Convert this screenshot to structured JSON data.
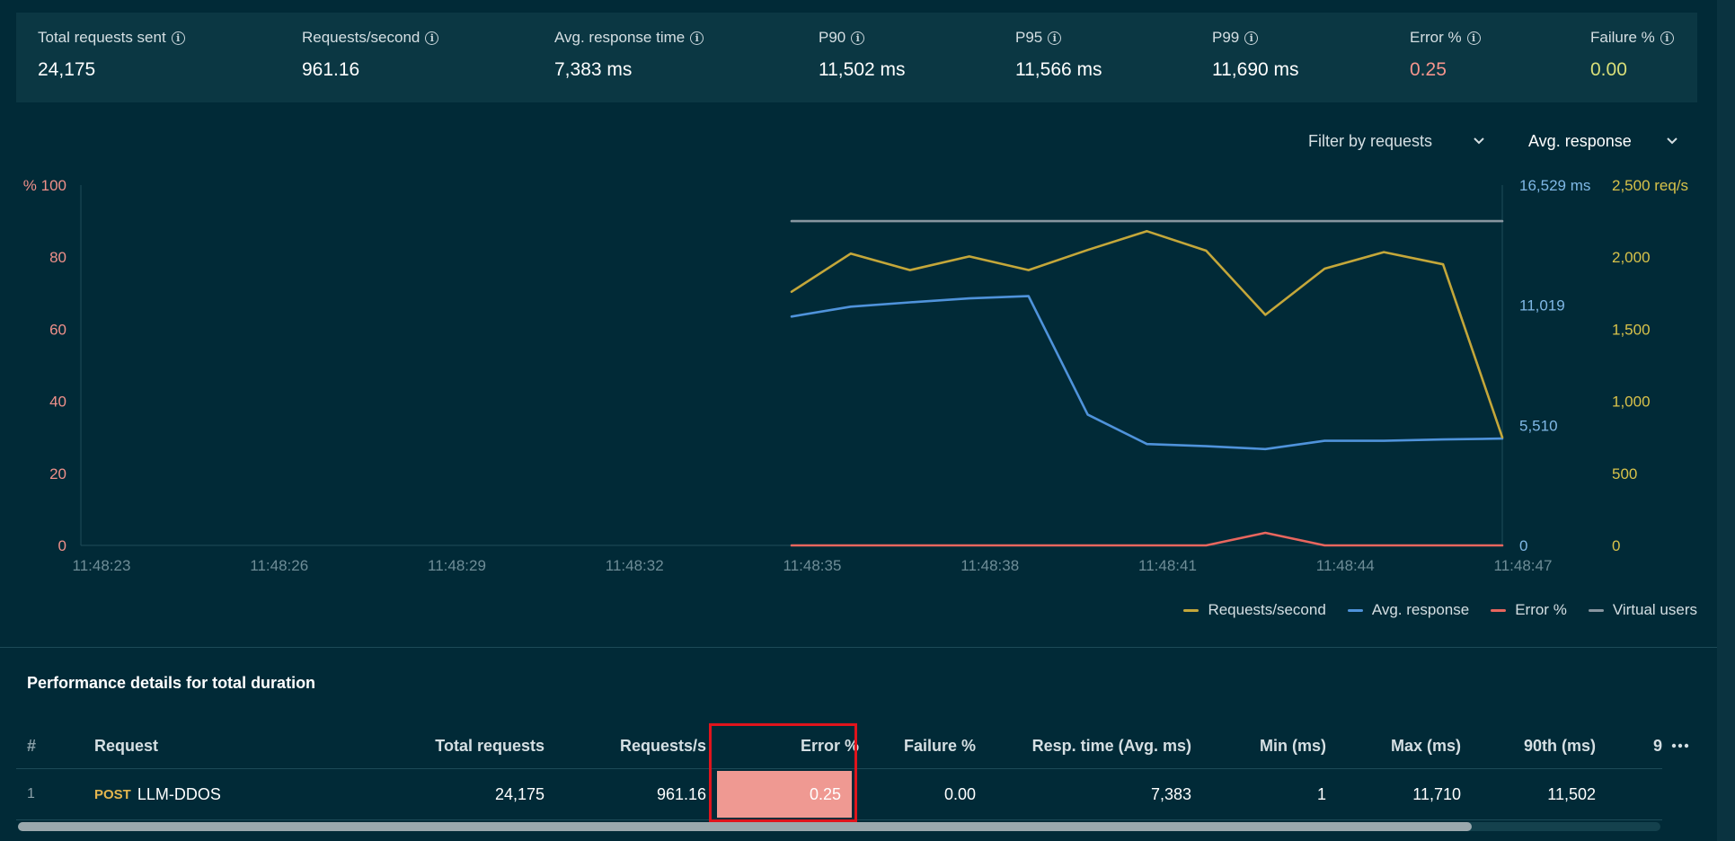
{
  "stats": [
    {
      "label": "Total requests sent",
      "value": "24,175"
    },
    {
      "label": "Requests/second",
      "value": "961.16"
    },
    {
      "label": "Avg. response time",
      "value": "7,383 ms"
    },
    {
      "label": "P90",
      "value": "11,502 ms"
    },
    {
      "label": "P95",
      "value": "11,566 ms"
    },
    {
      "label": "P99",
      "value": "11,690 ms"
    },
    {
      "label": "Error %",
      "value": "0.25"
    },
    {
      "label": "Failure %",
      "value": "0.00"
    }
  ],
  "filters": {
    "requests": "Filter by requests",
    "metric": "Avg. response"
  },
  "chart_data": {
    "type": "line",
    "x": [
      "11:48:35",
      "11:48:36",
      "11:48:37",
      "11:48:38",
      "11:48:39",
      "11:48:40",
      "11:48:41",
      "11:48:42",
      "11:48:43",
      "11:48:44",
      "11:48:45",
      "11:48:46",
      "11:48:47"
    ],
    "xticks": [
      "11:48:23",
      "11:48:26",
      "11:48:29",
      "11:48:32",
      "11:48:35",
      "11:48:38",
      "11:48:41",
      "11:48:44",
      "11:48:47"
    ],
    "yaxes": {
      "left": {
        "ticks": [
          "100",
          "80",
          "60",
          "40",
          "20",
          "0"
        ],
        "unit": "%",
        "range": [
          0,
          100
        ]
      },
      "mid": {
        "ticks": [
          "16,529 ms",
          "11,019",
          "5,510",
          "0"
        ],
        "range": [
          0,
          16529
        ]
      },
      "right": {
        "ticks": [
          "2,500 req/s",
          "2,000",
          "1,500",
          "1,000",
          "500",
          "0"
        ],
        "range": [
          0,
          2500
        ]
      }
    },
    "series": [
      {
        "name": "Requests/second",
        "axis": "right",
        "color": "#c4a73a",
        "values": [
          1760,
          2025,
          1910,
          2005,
          1910,
          2050,
          2180,
          2045,
          1600,
          1920,
          2035,
          1950,
          750
        ]
      },
      {
        "name": "Avg. response",
        "axis": "mid",
        "color": "#4f93db",
        "values": [
          10500,
          10950,
          11150,
          11330,
          11440,
          6000,
          4650,
          4550,
          4420,
          4800,
          4800,
          4860,
          4900
        ]
      },
      {
        "name": "Error %",
        "axis": "left",
        "color": "#e8665e",
        "values": [
          0,
          0,
          0,
          0,
          0,
          0,
          0,
          0,
          3.5,
          0,
          0,
          0,
          0
        ]
      },
      {
        "name": "Virtual users",
        "axis": "left",
        "color": "#8896a0",
        "values": [
          90,
          90,
          90,
          90,
          90,
          90,
          90,
          90,
          90,
          90,
          90,
          90,
          90
        ]
      }
    ],
    "legend": "bottom-right"
  },
  "table": {
    "title": "Performance details for total duration",
    "columns": [
      "#",
      "Request",
      "Total requests",
      "Requests/s",
      "Error %",
      "Failure %",
      "Resp. time (Avg. ms)",
      "Min (ms)",
      "Max (ms)",
      "90th (ms)",
      "9"
    ],
    "more_icon": "ellipsis-icon",
    "rows": [
      {
        "num": "1",
        "method": "POST",
        "name": "LLM-DDOS",
        "total": "24,175",
        "rps": "961.16",
        "error": "0.25",
        "failure": "0.00",
        "resp": "7,383",
        "min": "1",
        "max": "11,710",
        "p90": "11,502"
      }
    ]
  }
}
